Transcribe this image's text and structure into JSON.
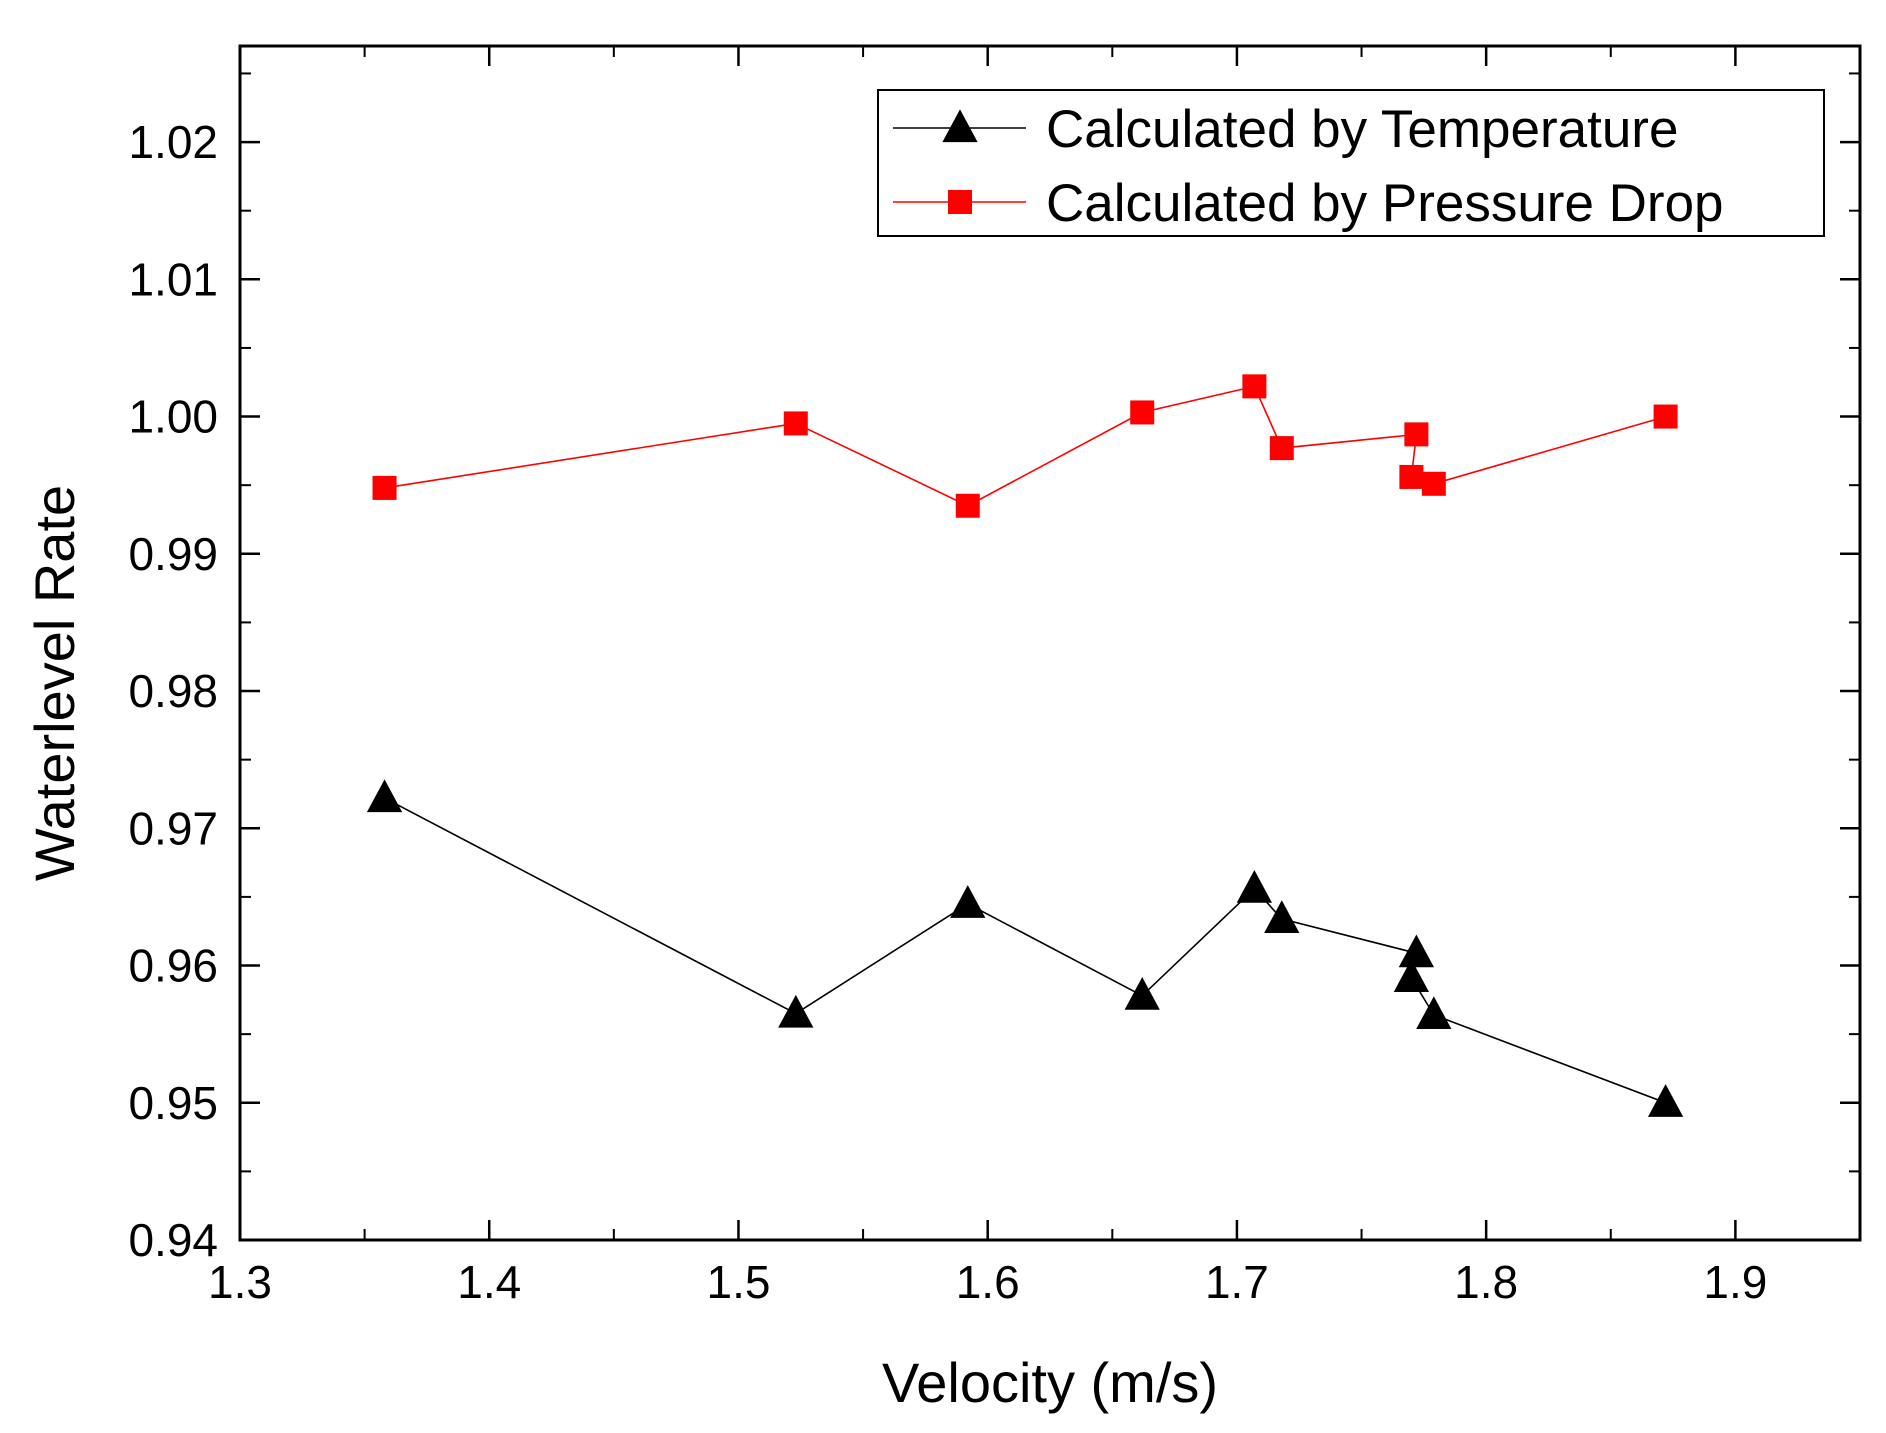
{
  "chart_data": {
    "type": "line",
    "title": "",
    "xlabel": "Velocity (m/s)",
    "ylabel": "Waterlevel Rate",
    "xlim": [
      1.3,
      1.95
    ],
    "ylim": [
      0.94,
      1.027
    ],
    "xticks": [
      1.3,
      1.4,
      1.5,
      1.6,
      1.7,
      1.8,
      1.9
    ],
    "xtick_labels": [
      "1.3",
      "1.4",
      "1.5",
      "1.6",
      "1.7",
      "1.8",
      "1.9"
    ],
    "yticks": [
      0.94,
      0.95,
      0.96,
      0.97,
      0.98,
      0.99,
      1.0,
      1.01,
      1.02
    ],
    "ytick_labels": [
      "0.94",
      "0.95",
      "0.96",
      "0.97",
      "0.98",
      "0.99",
      "1.00",
      "1.01",
      "1.02"
    ],
    "grid": false,
    "legend_position": "top-right",
    "series": [
      {
        "name": "Calculated by Temperature",
        "marker": "triangle",
        "color": "#000000",
        "x": [
          1.358,
          1.523,
          1.592,
          1.662,
          1.707,
          1.718,
          1.772,
          1.77,
          1.779,
          1.872
        ],
        "y": [
          0.9722,
          0.9565,
          0.9645,
          0.9578,
          0.9656,
          0.9634,
          0.9609,
          0.9591,
          0.9564,
          0.95
        ]
      },
      {
        "name": "Calculated by Pressure Drop",
        "marker": "square",
        "color": "#ff0000",
        "x": [
          1.358,
          1.523,
          1.592,
          1.662,
          1.707,
          1.718,
          1.772,
          1.77,
          1.779,
          1.872
        ],
        "y": [
          0.9948,
          0.9995,
          0.9935,
          1.0003,
          1.0022,
          0.9977,
          0.9987,
          0.9956,
          0.9951,
          1.0
        ]
      }
    ]
  }
}
